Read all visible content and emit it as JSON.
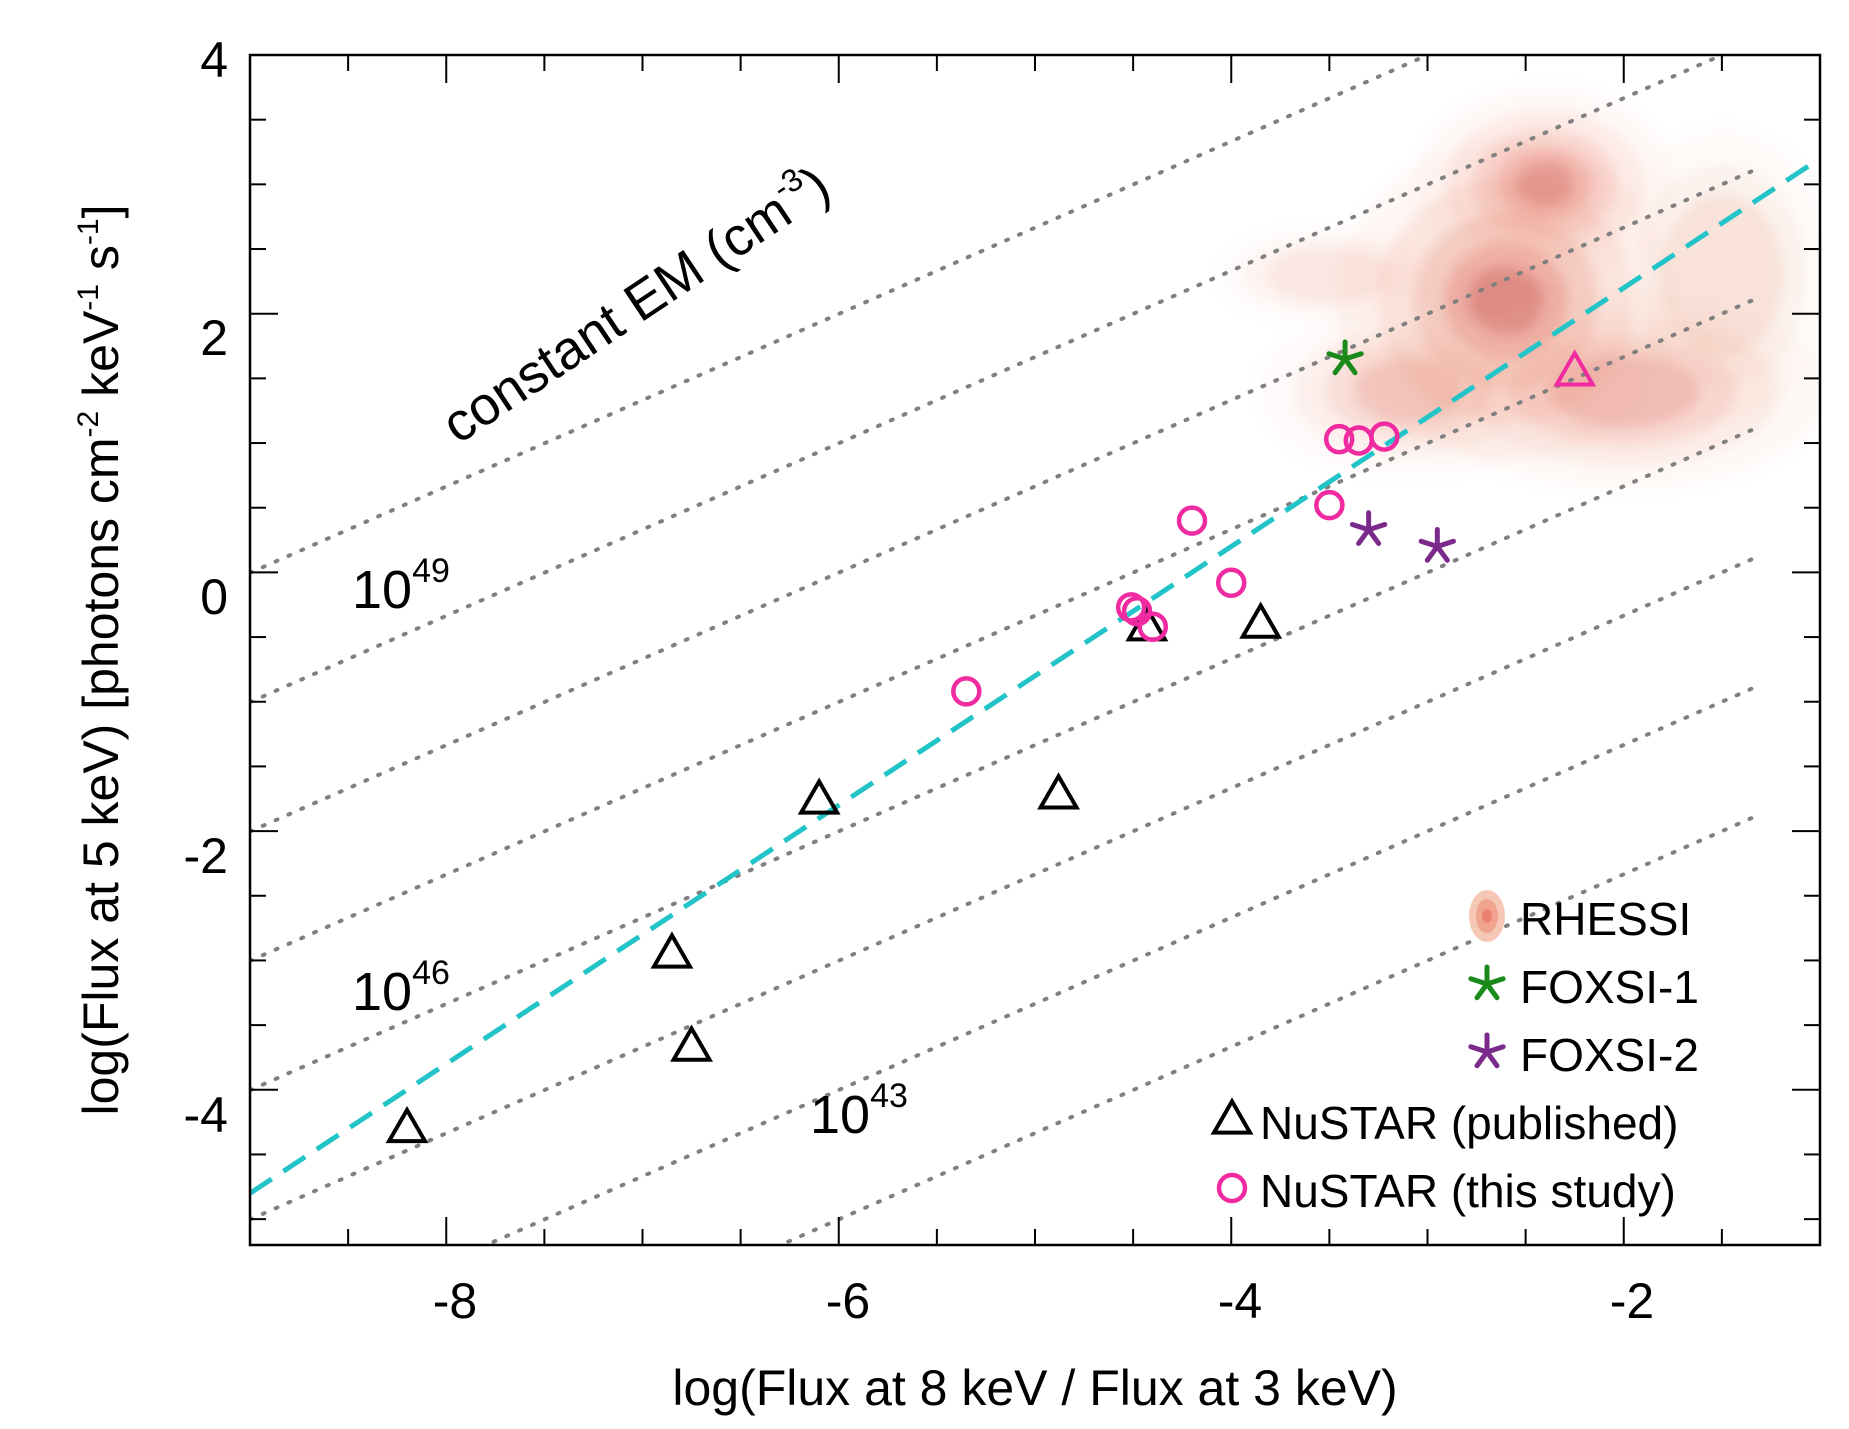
{
  "chart_data": {
    "type": "scatter",
    "xlabel": "log(Flux at 8 keV / Flux at 3 keV)",
    "ylabel": "log(Flux at 5 keV) [photons cm",
    "ylabel_sup1": "-2",
    "ylabel_mid1": " keV",
    "ylabel_sup2": "-1",
    "ylabel_mid2": " s",
    "ylabel_sup3": "-1",
    "ylabel_end": "]",
    "xlim": [
      -9,
      -1
    ],
    "ylim": [
      -5.2,
      4
    ],
    "x_ticks": [
      -8,
      -6,
      -4,
      -2
    ],
    "x_tick_labels": [
      "-8",
      "-6",
      "-4",
      "-2"
    ],
    "y_ticks": [
      -4,
      -2,
      0,
      2,
      4
    ],
    "y_tick_labels": [
      "-4",
      "-2",
      "0",
      "2",
      "4"
    ],
    "grid": false,
    "constant_em_title": "constant EM (cm",
    "constant_em_title_sup": "-3",
    "constant_em_title_end": ")",
    "em_labels": [
      {
        "base": "10",
        "exp": "49"
      },
      {
        "base": "10",
        "exp": "46"
      },
      {
        "base": "10",
        "exp": "43"
      }
    ],
    "em_lines": {
      "slope": 0.667,
      "intercepts": [
        6.0,
        5.0,
        4.0,
        3.0,
        2.0,
        1.0,
        0.0,
        -1.0
      ],
      "x_start": -9.0,
      "x_end": -1.3,
      "color": "#808080"
    },
    "fit_line": {
      "slope": 1.0,
      "intercept": 4.2,
      "color": "#22c4c8",
      "x_start": -9,
      "x_end": -1
    },
    "rhessi_density": {
      "color": "#e06a5e",
      "blobs": [
        {
          "x": -2.6,
          "y": 2.1,
          "sx": 0.45,
          "sy": 0.65,
          "w": 1.0
        },
        {
          "x": -2.4,
          "y": 3.0,
          "sx": 0.35,
          "sy": 0.4,
          "w": 0.5
        },
        {
          "x": -2.0,
          "y": 1.4,
          "sx": 0.55,
          "sy": 0.4,
          "w": 0.45
        },
        {
          "x": -3.1,
          "y": 1.4,
          "sx": 0.4,
          "sy": 0.35,
          "w": 0.3
        },
        {
          "x": -3.5,
          "y": 2.3,
          "sx": 0.3,
          "sy": 0.2,
          "w": 0.15
        },
        {
          "x": -1.5,
          "y": 2.3,
          "sx": 0.3,
          "sy": 0.6,
          "w": 0.25
        }
      ]
    },
    "series": [
      {
        "name": "RHESSI",
        "marker": "density",
        "color": "#e8826e",
        "x": [],
        "y": []
      },
      {
        "name": "FOXSI-1",
        "marker": "star",
        "color": "#1a8a1a",
        "x": [
          -3.42
        ],
        "y": [
          1.65
        ]
      },
      {
        "name": "FOXSI-2",
        "marker": "star",
        "color": "#7a2a8a",
        "x": [
          -3.3,
          -2.95
        ],
        "y": [
          0.33,
          0.2
        ]
      },
      {
        "name": "NuSTAR (published)",
        "marker": "triangle",
        "color": "#000000",
        "x": [
          -8.2,
          -6.85,
          -6.75,
          -6.1,
          -4.88,
          -4.43,
          -3.85
        ],
        "y": [
          -4.3,
          -2.95,
          -3.67,
          -1.76,
          -1.72,
          -0.42,
          -0.4
        ]
      },
      {
        "name": "NuSTAR (published) highlight",
        "marker": "triangle",
        "color": "#f02aa0",
        "legend": false,
        "x": [
          -2.25
        ],
        "y": [
          1.55
        ]
      },
      {
        "name": "NuSTAR (this study)",
        "marker": "circle",
        "color": "#f02aa0",
        "x": [
          -5.35,
          -4.51,
          -4.48,
          -4.4,
          -4.2,
          -4.0,
          -3.5,
          -3.45,
          -3.35,
          -3.22
        ],
        "y": [
          -0.92,
          -0.27,
          -0.3,
          -0.42,
          0.4,
          -0.08,
          0.52,
          1.03,
          1.02,
          1.05
        ]
      }
    ],
    "legend": {
      "position": "bottom-right",
      "entries": [
        {
          "label": "RHESSI",
          "marker": "density",
          "color": "#e8826e"
        },
        {
          "label": "FOXSI-1",
          "marker": "star",
          "color": "#1a8a1a"
        },
        {
          "label": "FOXSI-2",
          "marker": "star",
          "color": "#7a2a8a"
        },
        {
          "label": "NuSTAR (published)",
          "marker": "triangle",
          "color": "#000000"
        },
        {
          "label": "NuSTAR (this study)",
          "marker": "circle",
          "color": "#f02aa0"
        }
      ]
    }
  }
}
